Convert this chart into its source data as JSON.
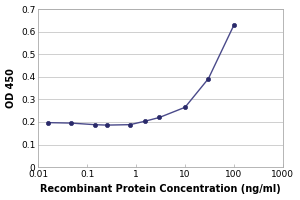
{
  "x": [
    0.016,
    0.047,
    0.141,
    0.25,
    0.75,
    1.5,
    3.0,
    10.0,
    30.0,
    100.0
  ],
  "y": [
    0.197,
    0.195,
    0.188,
    0.186,
    0.188,
    0.203,
    0.22,
    0.265,
    0.392,
    0.63
  ],
  "line_color": "#4a4a8a",
  "marker_color": "#2a2a6a",
  "marker_style": "o",
  "marker_size": 3,
  "xlabel": "Recombinant Protein Concentration (ng/ml)",
  "ylabel": "OD 450",
  "xlim": [
    0.01,
    1000
  ],
  "ylim": [
    0,
    0.7
  ],
  "yticks": [
    0,
    0.1,
    0.2,
    0.3,
    0.4,
    0.5,
    0.6,
    0.7
  ],
  "ytick_labels": [
    "0",
    "0.1",
    "0.2",
    "0.3",
    "0.4",
    "0.5",
    "0.6",
    "0.7"
  ],
  "xtick_labels": [
    "0.01",
    "0.1",
    "1",
    "10",
    "100",
    "1000"
  ],
  "xtick_values": [
    0.01,
    0.1,
    1,
    10,
    100,
    1000
  ],
  "background_color": "#ffffff",
  "plot_bg_color": "#ffffff",
  "grid_color": "#c8c8c8",
  "spine_color": "#aaaaaa",
  "label_fontsize": 7,
  "tick_fontsize": 6.5,
  "line_width": 1.0
}
